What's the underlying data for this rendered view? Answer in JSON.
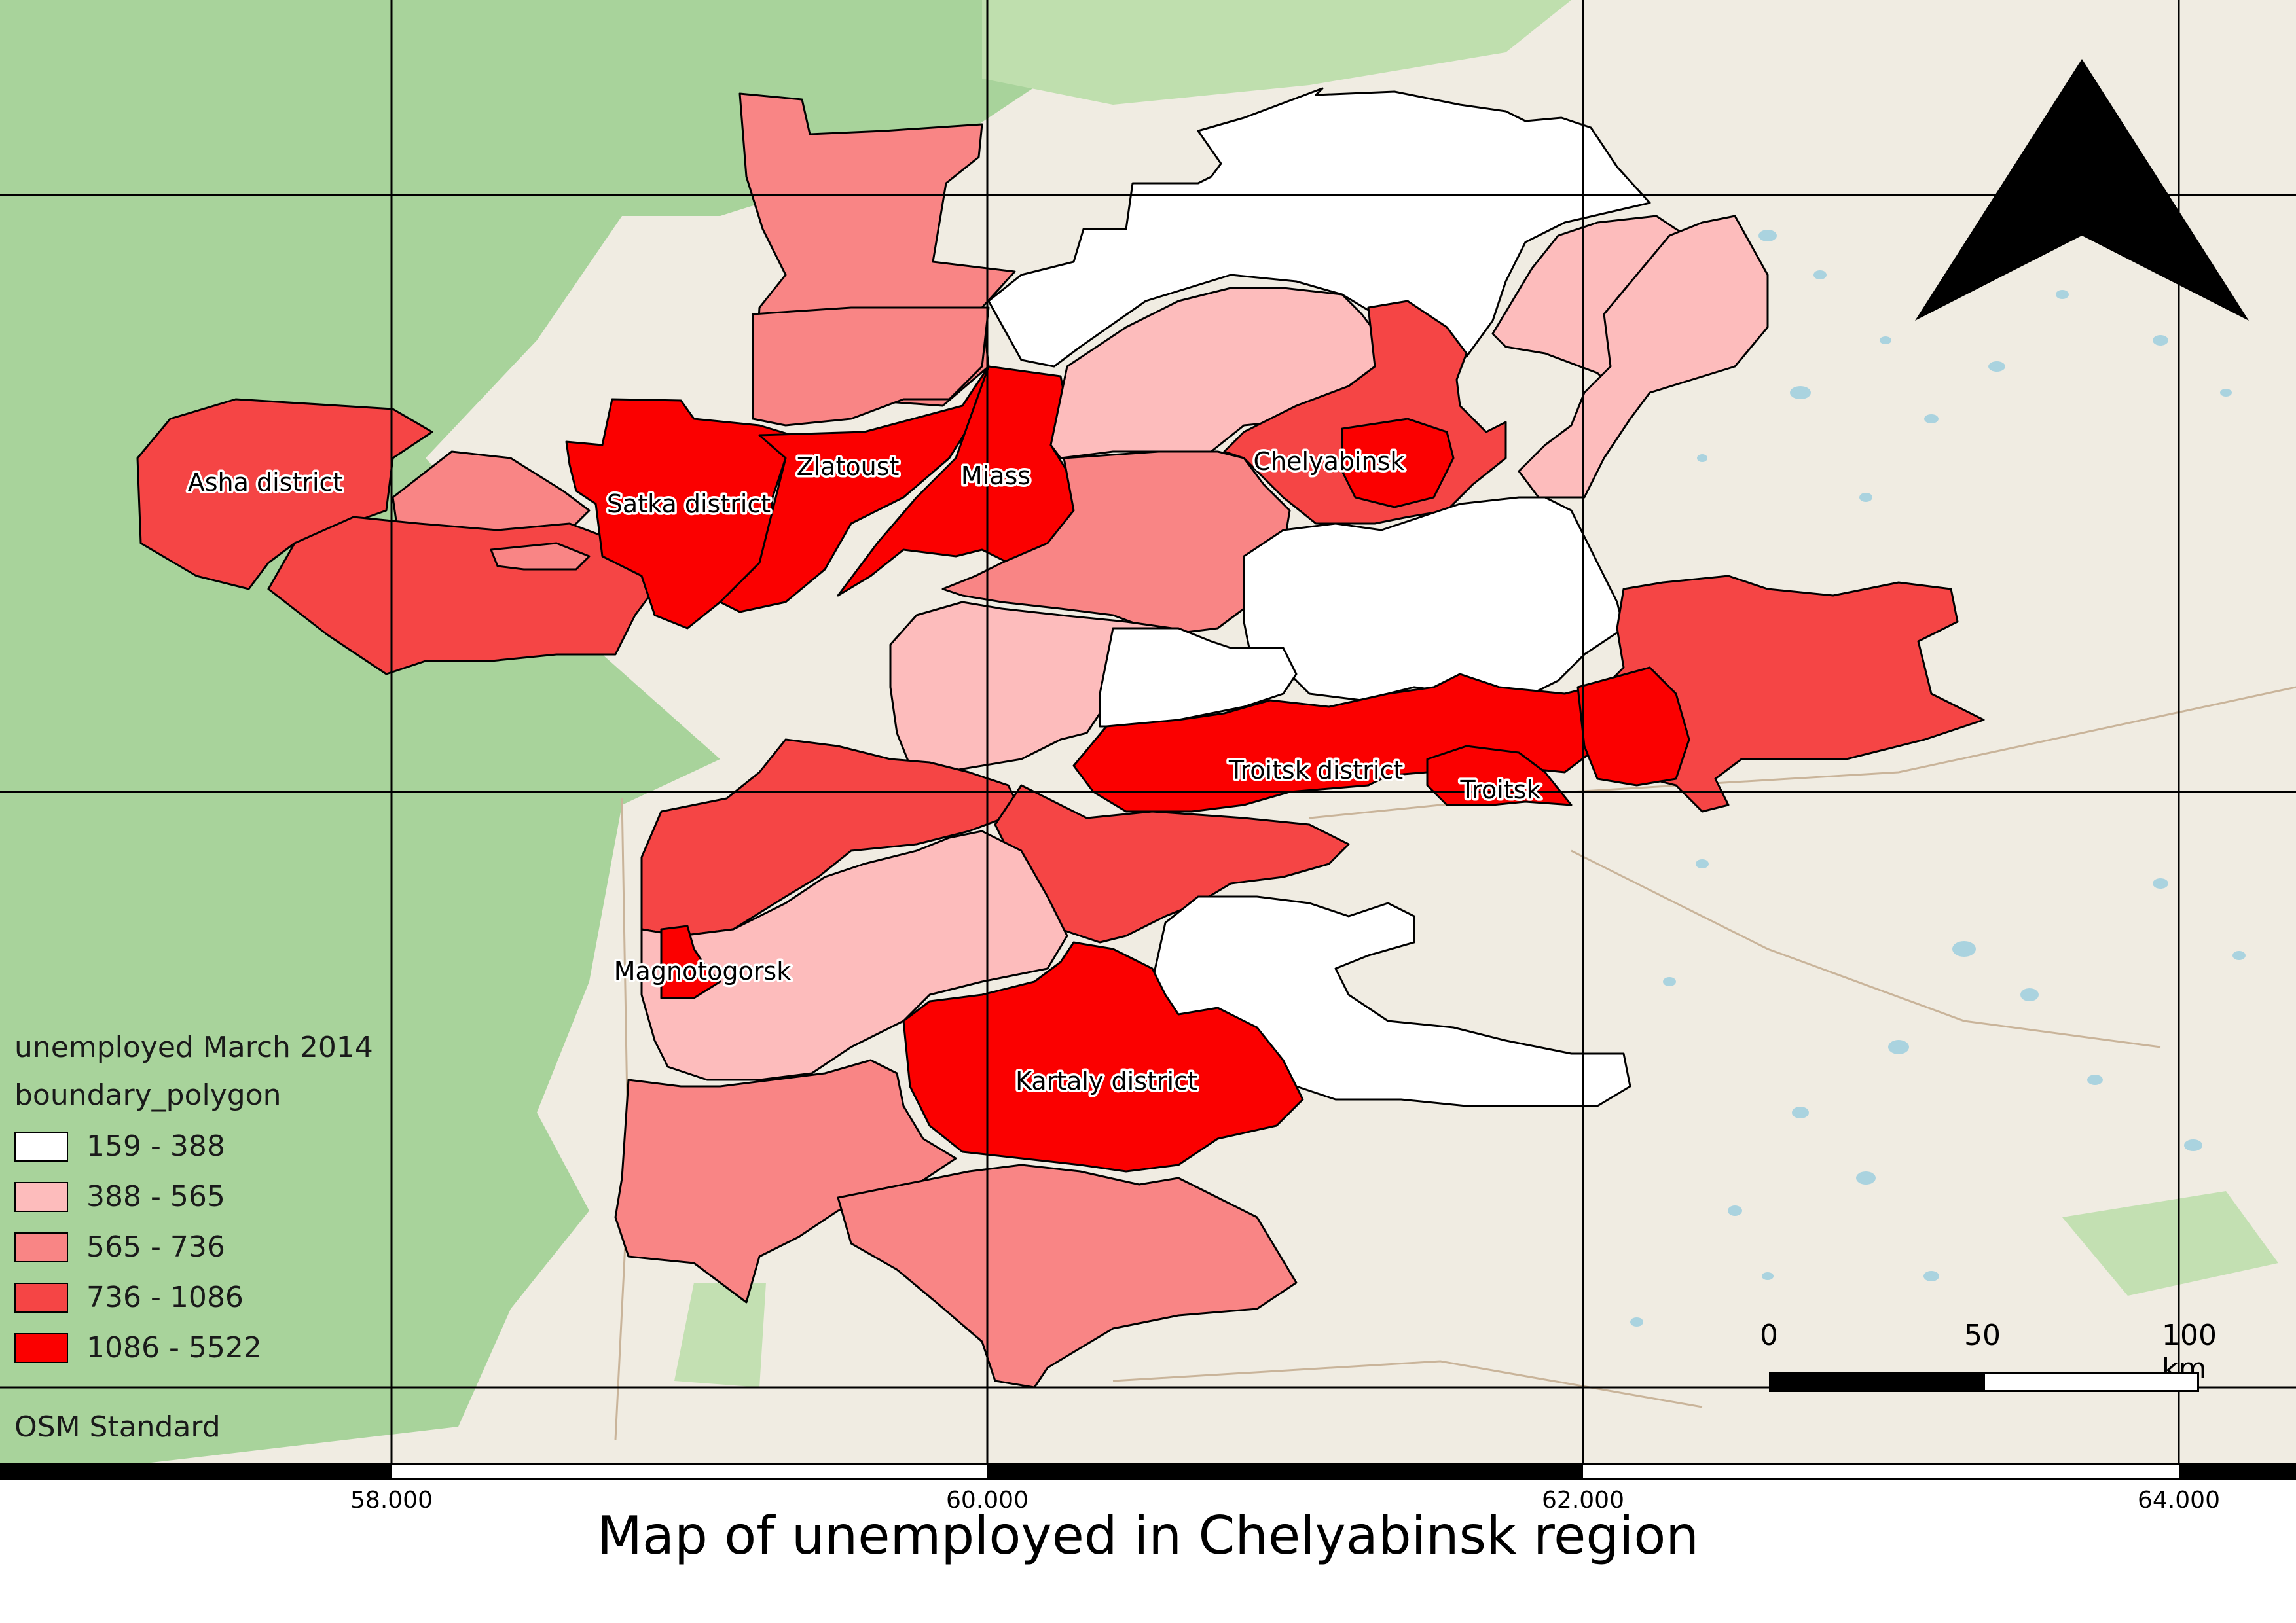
{
  "map": {
    "title": "Map of unemployed in Chelyabinsk region",
    "basemap": "OSM Standard",
    "colors": {
      "class_159_388": "#ffffff",
      "class_388_565": "#fdbcbc",
      "class_565_736": "#f98585",
      "class_736_1086": "#f54545",
      "class_1086_5522": "#fb0000",
      "basemap_land": "#f0ece2",
      "basemap_forest": "#a8d39b",
      "water": "#aad3df"
    },
    "region_labels": {
      "asha": "Asha district",
      "satka": "Satka district",
      "zlatoust": "Zlatoust",
      "miass": "Miass",
      "chelyabinsk": "Chelyabinsk",
      "troitsk_district": "Troitsk district",
      "troitsk": "Troitsk",
      "magnitogorsk": "Magnotogorsk",
      "kartaly": "Kartaly district"
    },
    "longitude_ticks": [
      "58.000",
      "60.000",
      "62.000",
      "64.000"
    ]
  },
  "legend": {
    "title": "unemployed March 2014",
    "subtitle": "boundary_polygon",
    "classes": [
      {
        "label": "159 - 388",
        "color": "#ffffff"
      },
      {
        "label": "388 - 565",
        "color": "#fdbcbc"
      },
      {
        "label": "565 - 736",
        "color": "#f98585"
      },
      {
        "label": "736 - 1086",
        "color": "#f54545"
      },
      {
        "label": "1086 - 5522",
        "color": "#fb0000"
      }
    ]
  },
  "scale_bar": {
    "ticks": [
      "0",
      "50",
      "100 km"
    ]
  },
  "north_arrow": {
    "icon": "north-arrow-icon"
  }
}
